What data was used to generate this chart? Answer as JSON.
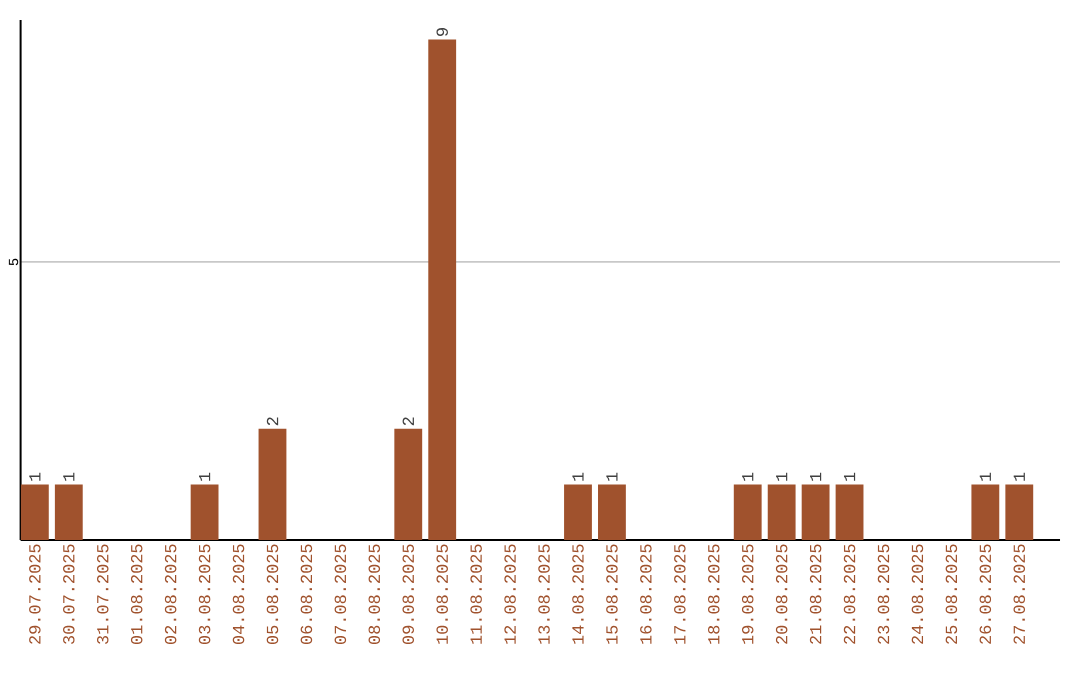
{
  "chart_data": {
    "type": "bar",
    "categories": [
      "29.07.2025",
      "30.07.2025",
      "31.07.2025",
      "01.08.2025",
      "02.08.2025",
      "03.08.2025",
      "04.08.2025",
      "05.08.2025",
      "06.08.2025",
      "07.08.2025",
      "08.08.2025",
      "09.08.2025",
      "10.08.2025",
      "11.08.2025",
      "12.08.2025",
      "13.08.2025",
      "14.08.2025",
      "15.08.2025",
      "16.08.2025",
      "17.08.2025",
      "18.08.2025",
      "19.08.2025",
      "20.08.2025",
      "21.08.2025",
      "22.08.2025",
      "23.08.2025",
      "24.08.2025",
      "25.08.2025",
      "26.08.2025",
      "27.08.2025"
    ],
    "values": [
      1,
      1,
      0,
      0,
      0,
      1,
      0,
      2,
      0,
      0,
      0,
      2,
      9,
      0,
      0,
      0,
      1,
      1,
      0,
      0,
      0,
      1,
      1,
      1,
      1,
      0,
      0,
      0,
      1,
      1
    ],
    "value_labels": [
      "1",
      "1",
      null,
      null,
      null,
      "1",
      null,
      "2",
      null,
      null,
      null,
      "2",
      "9",
      null,
      null,
      null,
      "1",
      "1",
      null,
      null,
      null,
      "1",
      "1",
      "1",
      "1",
      null,
      null,
      null,
      "1",
      "1"
    ],
    "color": "#a0522d",
    "ylim": [
      0,
      9.35
    ],
    "yticks": [
      5
    ],
    "grid": "y"
  }
}
